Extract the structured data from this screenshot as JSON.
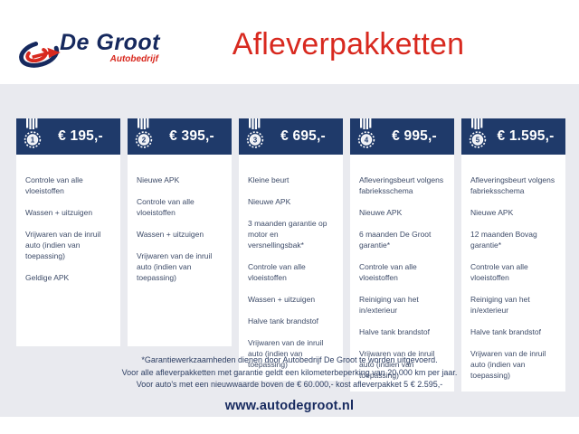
{
  "header": {
    "logo_name": "De Groot",
    "logo_subtitle": "Autobedrijf",
    "title": "Afleverpakketten"
  },
  "packages": [
    {
      "number": "1",
      "price": "€ 195,-",
      "items": [
        "Controle van alle vloeistoffen",
        "Wassen + uitzuigen",
        "Vrijwaren van de inruil auto (indien van toepassing)",
        "Geldige APK"
      ]
    },
    {
      "number": "2",
      "price": "€ 395,-",
      "items": [
        "Nieuwe APK",
        "Controle van alle vloeistoffen",
        "Wassen + uitzuigen",
        "Vrijwaren van de inruil auto (indien van toepassing)"
      ]
    },
    {
      "number": "3",
      "price": "€ 695,-",
      "items": [
        "Kleine beurt",
        "Nieuwe APK",
        "3 maanden garantie op motor en versnellingsbak*",
        "Controle van alle vloeistoffen",
        "Wassen + uitzuigen",
        "Halve tank brandstof",
        "Vrijwaren van de inruil auto (indien van toepassing)"
      ]
    },
    {
      "number": "4",
      "price": "€ 995,-",
      "items": [
        "Afleveringsbeurt volgens fabrieksschema",
        "Nieuwe APK",
        "6 maanden De Groot garantie*",
        "Controle van alle vloeistoffen",
        "Reiniging van het in/exterieur",
        "Halve tank brandstof",
        "Vrijwaren van de inruil auto (indien van toepassing)"
      ]
    },
    {
      "number": "5",
      "price": "€ 1.595,-",
      "items": [
        "Afleveringsbeurt volgens fabrieksschema",
        "Nieuwe APK",
        "12 maanden Bovag garantie*",
        "Controle van alle vloeistoffen",
        "Reiniging van het in/exterieur",
        "Halve tank brandstof",
        "Vrijwaren van de inruil auto (indien van toepassing)"
      ]
    }
  ],
  "footnotes": [
    "*Garantiewerkzaamheden dienen door Autobedrijf De Groot te worden uitgevoerd.",
    "Voor alle afleverpakketten met garantie geldt een kilometerbeperking van 20.000 km per jaar.",
    "Voor auto's met een nieuwwaarde boven de € 60.000,- kost afleverpakket 5 € 2.595,-"
  ],
  "website": "www.autodegroot.nl",
  "colors": {
    "navy": "#1f3a6a",
    "logo_navy": "#16295e",
    "red": "#d8291f",
    "band_grey": "#e9eaef",
    "item_text": "#3d4b68"
  }
}
